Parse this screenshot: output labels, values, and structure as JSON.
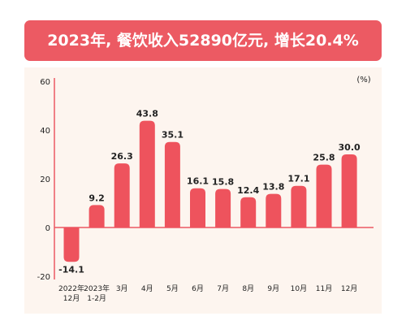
{
  "banner": {
    "title": "2023年, 餐饮收入52890亿元, 增长20.4%"
  },
  "colors": {
    "bar": "#ee535d",
    "banner": "#ec5a63",
    "axis": "#ec5a63",
    "panel": "#fdf5ef"
  },
  "chart_data": {
    "type": "bar",
    "title": "",
    "xlabel": "",
    "ylabel": "",
    "unit": "(%)",
    "ylim": [
      -20,
      60
    ],
    "yticks": [
      60,
      40,
      20,
      0,
      -20
    ],
    "grid": false,
    "categories": [
      [
        "2022年",
        "12月"
      ],
      [
        "2023年",
        "1-2月"
      ],
      [
        "3月"
      ],
      [
        "4月"
      ],
      [
        "5月"
      ],
      [
        "6月"
      ],
      [
        "7月"
      ],
      [
        "8月"
      ],
      [
        "9月"
      ],
      [
        "10月"
      ],
      [
        "11月"
      ],
      [
        "12月"
      ]
    ],
    "values": [
      -14.1,
      9.2,
      26.3,
      43.8,
      35.1,
      16.1,
      15.8,
      12.4,
      13.8,
      17.1,
      25.8,
      30.0
    ],
    "labels": [
      "-14.1",
      "9.2",
      "26.3",
      "43.8",
      "35.1",
      "16.1",
      "15.8",
      "12.4",
      "13.8",
      "17.1",
      "25.8",
      "30.0"
    ]
  }
}
